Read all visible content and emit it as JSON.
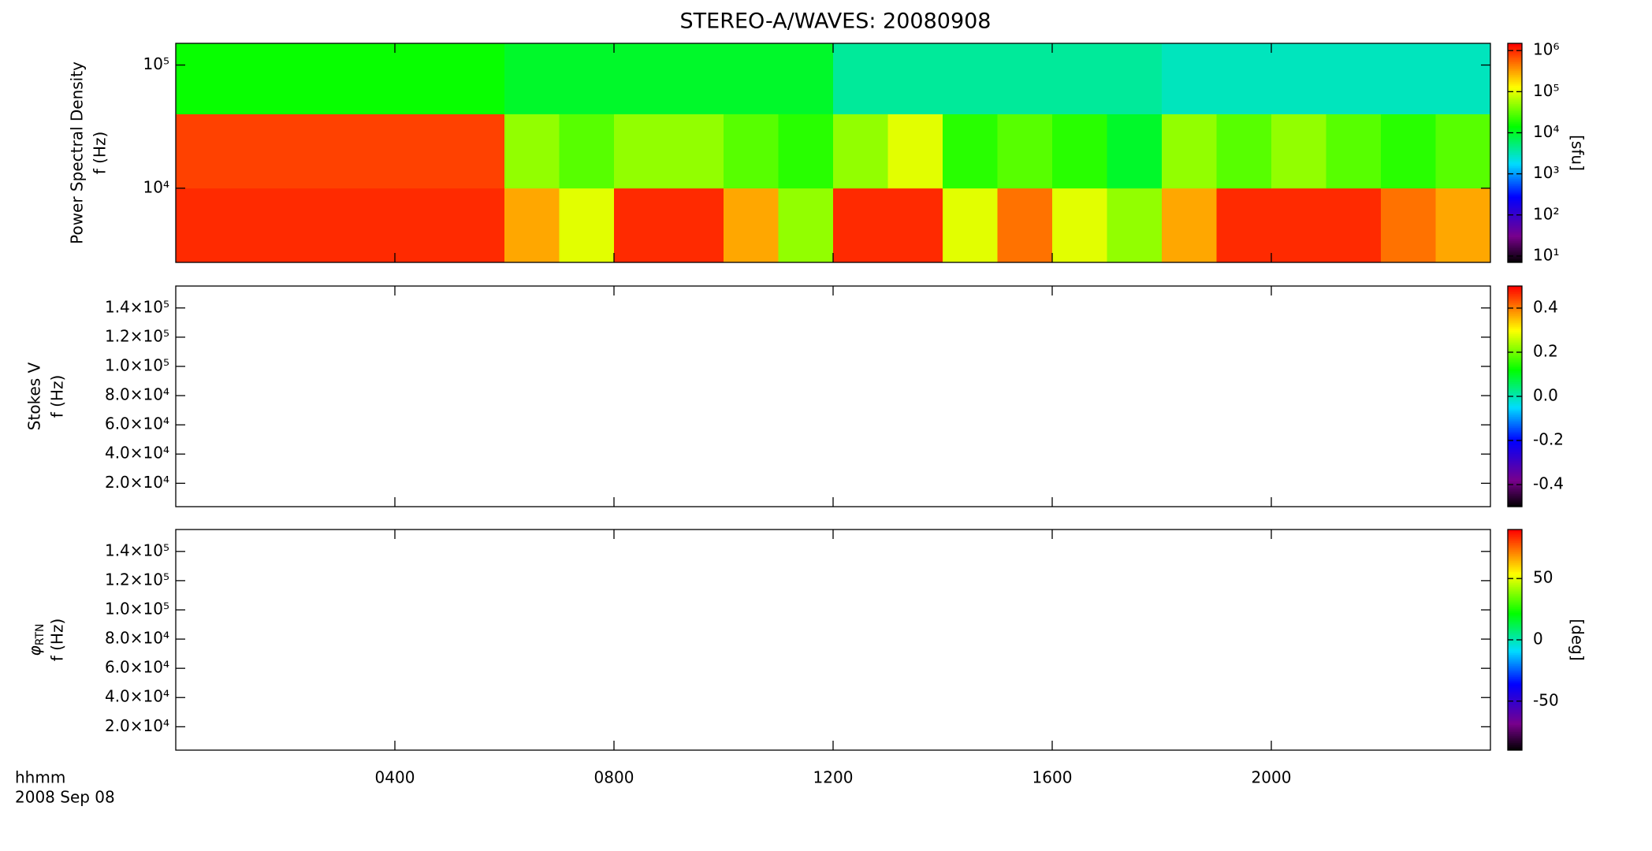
{
  "title": "STEREO-A/WAVES: 20080908",
  "x_label": [
    "hhmm",
    "2008 Sep 08"
  ],
  "chart_data": [
    {
      "type": "heatmap",
      "ylabel": [
        "Power Spectral Density",
        "f (Hz)"
      ],
      "ylog": true,
      "ylim": [
        2500,
        150000
      ],
      "yticks": [
        {
          "value": 10000,
          "label": "10⁴"
        },
        {
          "value": 100000,
          "label": "10⁵"
        }
      ],
      "xlim": [
        0,
        24
      ],
      "xticks": [
        4,
        8,
        12,
        16,
        20
      ],
      "x_edges": [
        0,
        1,
        2,
        3,
        4,
        5,
        6,
        7,
        8,
        9,
        10,
        11,
        12,
        13,
        14,
        15,
        16,
        17,
        18,
        19,
        20,
        21,
        22,
        23,
        24
      ],
      "y_edges": [
        2500,
        10000,
        40000,
        150000
      ],
      "z": [
        [
          1000000,
          1000000,
          1000000,
          1000000,
          1000000,
          1000000,
          300000,
          100000,
          1000000,
          1000000,
          300000,
          50000,
          1000000,
          1000000,
          100000,
          500000,
          100000,
          50000,
          300000,
          1000000,
          1000000,
          1000000,
          500000,
          300000
        ],
        [
          800000,
          800000,
          800000,
          800000,
          800000,
          800000,
          50000,
          30000,
          50000,
          50000,
          30000,
          20000,
          50000,
          100000,
          20000,
          30000,
          20000,
          10000,
          50000,
          30000,
          50000,
          30000,
          20000,
          30000
        ],
        [
          15000,
          15000,
          15000,
          15000,
          15000,
          15000,
          10000,
          10000,
          10000,
          10000,
          10000,
          10000,
          4000,
          4000,
          4000,
          4000,
          4000,
          4000,
          3000,
          3000,
          3000,
          3000,
          3000,
          3000
        ]
      ],
      "colormap": "rainbow",
      "clog": true,
      "clim": [
        7,
        1500000
      ],
      "cticks": [
        {
          "value": 1000000,
          "label": "10⁶"
        },
        {
          "value": 100000,
          "label": "10⁵"
        },
        {
          "value": 10000,
          "label": "10⁴"
        },
        {
          "value": 1000,
          "label": "10³"
        },
        {
          "value": 100,
          "label": "10²"
        },
        {
          "value": 10,
          "label": "10¹"
        }
      ],
      "clabel": "[sfu]"
    },
    {
      "type": "heatmap",
      "ylabel": [
        "Stokes V",
        "f (Hz)"
      ],
      "ylim": [
        4000,
        155000
      ],
      "yticks": [
        {
          "value": 20000,
          "label": "2.0×10⁴"
        },
        {
          "value": 40000,
          "label": "4.0×10⁴"
        },
        {
          "value": 60000,
          "label": "6.0×10⁴"
        },
        {
          "value": 80000,
          "label": "8.0×10⁴"
        },
        {
          "value": 100000,
          "label": "1.0×10⁵"
        },
        {
          "value": 120000,
          "label": "1.2×10⁵"
        },
        {
          "value": 140000,
          "label": "1.4×10⁵"
        }
      ],
      "xlim": [
        0,
        24
      ],
      "xticks": [
        4,
        8,
        12,
        16,
        20
      ],
      "colormap": "rainbow",
      "clim": [
        -0.5,
        0.5
      ],
      "cticks": [
        0.4,
        0.2,
        {
          "value": 0,
          "label": "0.0"
        },
        -0.2,
        -0.4
      ]
    },
    {
      "type": "heatmap",
      "ylabel": [
        "φ",
        "f (Hz)"
      ],
      "ylabel_subscript": "RTN",
      "ylim": [
        4000,
        155000
      ],
      "yticks": [
        {
          "value": 20000,
          "label": "2.0×10⁴"
        },
        {
          "value": 40000,
          "label": "4.0×10⁴"
        },
        {
          "value": 60000,
          "label": "6.0×10⁴"
        },
        {
          "value": 80000,
          "label": "8.0×10⁴"
        },
        {
          "value": 100000,
          "label": "1.0×10⁵"
        },
        {
          "value": 120000,
          "label": "1.2×10⁵"
        },
        {
          "value": 140000,
          "label": "1.4×10⁵"
        }
      ],
      "xlim": [
        0,
        24
      ],
      "xticks": [
        {
          "value": 4,
          "label": "0400"
        },
        {
          "value": 8,
          "label": "0800"
        },
        {
          "value": 12,
          "label": "1200"
        },
        {
          "value": 16,
          "label": "1600"
        },
        {
          "value": 20,
          "label": "2000"
        }
      ],
      "colormap": "rainbow",
      "clim": [
        -90,
        90
      ],
      "cticks": [
        50,
        0,
        -50
      ],
      "clabel": "[deg]"
    }
  ]
}
